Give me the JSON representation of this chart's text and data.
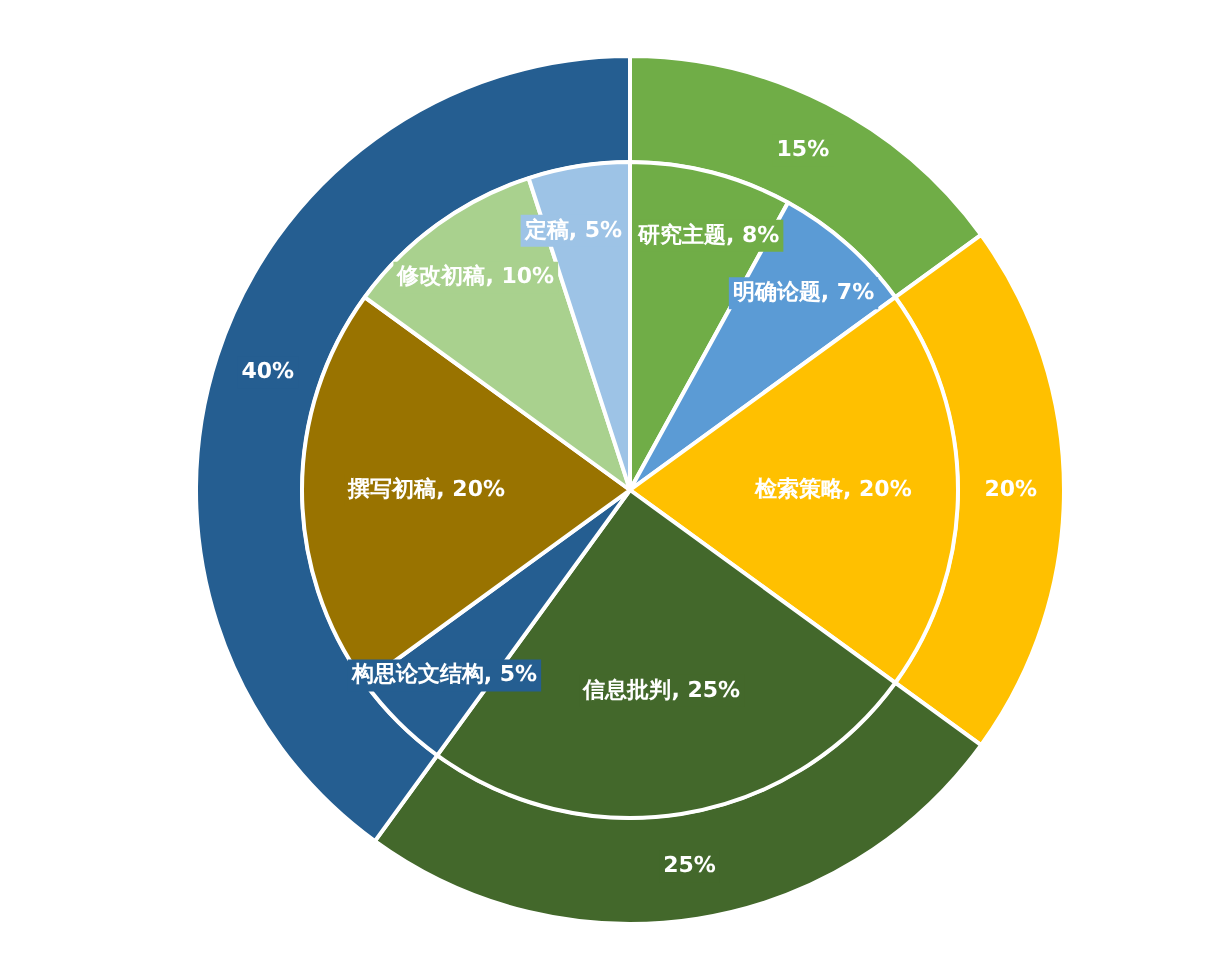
{
  "chart_data": [
    {
      "type": "donut",
      "categories": [
        null,
        null,
        null,
        null
      ],
      "values": [
        15,
        20,
        25,
        40
      ],
      "colors": [
        "#70ad47",
        "#ffc000",
        "#43682b",
        "#255e91"
      ],
      "value_labels": [
        "15%",
        "20%",
        "25%",
        "40%"
      ]
    },
    {
      "type": "pie",
      "categories": [
        "研究主题",
        "明确论题",
        "检索策略",
        "信息批判",
        "构思论文结构",
        "撰写初稿",
        "修改初稿",
        "定稿"
      ],
      "values": [
        8,
        7,
        20,
        25,
        5,
        20,
        10,
        5
      ],
      "colors": [
        "#70ad47",
        "#5b9bd5",
        "#ffc000",
        "#43682b",
        "#255e91",
        "#997300",
        "#a9d18e",
        "#9dc3e6"
      ],
      "value_labels": [
        "8%",
        "7%",
        "20%",
        "25%",
        "5%",
        "20%",
        "10%",
        "5%"
      ]
    }
  ]
}
